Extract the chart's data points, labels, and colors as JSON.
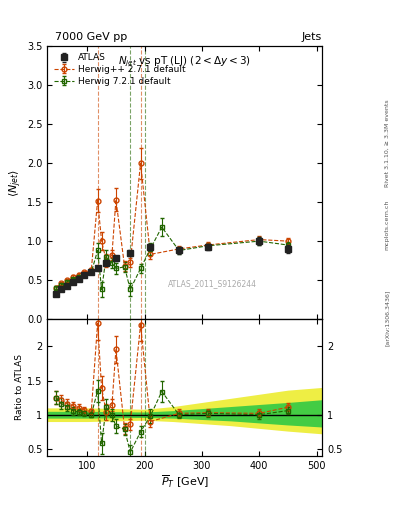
{
  "title_left": "7000 GeV pp",
  "title_right": "Jets",
  "plot_title": "$N_{jet}$ vs pT (LJ) $(2 < \\Delta y < 3)$",
  "xlabel": "$\\overline{P}_T$ [GeV]",
  "ylabel_main": "$\\langle N_{jet}\\rangle$",
  "ylabel_ratio": "Ratio to ATLAS",
  "atlas_label": "ATLAS_2011_S9126244",
  "atlas_x": [
    45,
    55,
    65,
    75,
    85,
    95,
    107,
    118,
    133,
    150,
    175,
    210,
    260,
    310,
    400,
    450
  ],
  "atlas_y": [
    0.32,
    0.38,
    0.43,
    0.48,
    0.52,
    0.56,
    0.6,
    0.65,
    0.72,
    0.78,
    0.85,
    0.92,
    0.88,
    0.92,
    1.0,
    0.9
  ],
  "atlas_yerr": [
    0.02,
    0.02,
    0.02,
    0.02,
    0.02,
    0.02,
    0.02,
    0.02,
    0.03,
    0.03,
    0.04,
    0.04,
    0.04,
    0.04,
    0.05,
    0.05
  ],
  "hw_x": [
    45,
    55,
    65,
    75,
    85,
    95,
    107,
    118,
    125,
    133,
    143,
    150,
    165,
    175,
    193,
    210,
    260,
    310,
    400,
    450
  ],
  "hw_y": [
    0.4,
    0.46,
    0.5,
    0.54,
    0.57,
    0.6,
    0.63,
    1.52,
    1.0,
    0.75,
    0.82,
    1.53,
    0.68,
    0.73,
    2.0,
    0.83,
    0.9,
    0.95,
    1.02,
    1.0
  ],
  "hw_yerr": [
    0.02,
    0.02,
    0.02,
    0.02,
    0.02,
    0.02,
    0.02,
    0.15,
    0.12,
    0.08,
    0.06,
    0.15,
    0.06,
    0.06,
    0.2,
    0.06,
    0.04,
    0.04,
    0.05,
    0.04
  ],
  "hw7_x": [
    45,
    55,
    65,
    75,
    85,
    95,
    107,
    118,
    125,
    133,
    143,
    150,
    165,
    175,
    193,
    210,
    230,
    260,
    310,
    400,
    450
  ],
  "hw7_y": [
    0.4,
    0.44,
    0.48,
    0.51,
    0.54,
    0.57,
    0.6,
    0.88,
    0.38,
    0.8,
    0.72,
    0.65,
    0.67,
    0.38,
    0.65,
    0.9,
    1.18,
    0.88,
    0.94,
    1.0,
    0.95
  ],
  "hw7_yerr": [
    0.02,
    0.02,
    0.02,
    0.02,
    0.02,
    0.02,
    0.02,
    0.1,
    0.1,
    0.08,
    0.06,
    0.07,
    0.06,
    0.08,
    0.06,
    0.08,
    0.12,
    0.04,
    0.04,
    0.05,
    0.04
  ],
  "ratio_hw_x": [
    45,
    55,
    65,
    75,
    85,
    95,
    107,
    118,
    125,
    133,
    143,
    150,
    165,
    175,
    193,
    210,
    260,
    310,
    400,
    450
  ],
  "ratio_hw_y": [
    1.25,
    1.21,
    1.16,
    1.13,
    1.1,
    1.07,
    1.05,
    2.34,
    1.39,
    1.04,
    1.14,
    1.96,
    0.8,
    0.86,
    2.32,
    0.9,
    1.02,
    1.03,
    1.02,
    1.11
  ],
  "ratio_hw_yerr": [
    0.1,
    0.08,
    0.07,
    0.06,
    0.05,
    0.04,
    0.04,
    0.25,
    0.18,
    0.12,
    0.09,
    0.2,
    0.08,
    0.08,
    0.24,
    0.08,
    0.06,
    0.05,
    0.06,
    0.06
  ],
  "ratio_hw7_x": [
    45,
    55,
    65,
    75,
    85,
    95,
    107,
    118,
    125,
    133,
    143,
    150,
    165,
    175,
    193,
    210,
    230,
    260,
    310,
    400,
    450
  ],
  "ratio_hw7_y": [
    1.25,
    1.16,
    1.12,
    1.06,
    1.04,
    1.02,
    1.0,
    1.35,
    0.58,
    1.11,
    1.0,
    0.83,
    0.79,
    0.45,
    0.75,
    0.98,
    1.34,
    1.0,
    1.02,
    1.0,
    1.06
  ],
  "ratio_hw7_yerr": [
    0.1,
    0.08,
    0.07,
    0.06,
    0.05,
    0.04,
    0.04,
    0.16,
    0.15,
    0.12,
    0.09,
    0.1,
    0.08,
    0.1,
    0.08,
    0.1,
    0.15,
    0.05,
    0.05,
    0.06,
    0.05
  ],
  "band_x": [
    30,
    50,
    100,
    150,
    200,
    250,
    300,
    350,
    400,
    450,
    510
  ],
  "band_yellow_lo": [
    0.9,
    0.9,
    0.9,
    0.91,
    0.92,
    0.9,
    0.87,
    0.84,
    0.8,
    0.76,
    0.72
  ],
  "band_yellow_hi": [
    1.1,
    1.1,
    1.1,
    1.09,
    1.08,
    1.12,
    1.18,
    1.24,
    1.3,
    1.36,
    1.4
  ],
  "band_green_lo": [
    0.95,
    0.95,
    0.95,
    0.955,
    0.96,
    0.95,
    0.93,
    0.91,
    0.88,
    0.85,
    0.82
  ],
  "band_green_hi": [
    1.05,
    1.05,
    1.05,
    1.045,
    1.04,
    1.06,
    1.09,
    1.12,
    1.15,
    1.18,
    1.22
  ],
  "xlim": [
    30,
    510
  ],
  "ylim_main": [
    0.0,
    3.5
  ],
  "ylim_ratio": [
    0.4,
    2.4
  ],
  "vline_orange": [
    118,
    193
  ],
  "vline_green": [
    175,
    200
  ],
  "color_atlas": "#222222",
  "color_hw": "#cc4400",
  "color_hw7": "#226600",
  "color_band_yellow": "#eeee44",
  "color_band_green": "#44cc44"
}
